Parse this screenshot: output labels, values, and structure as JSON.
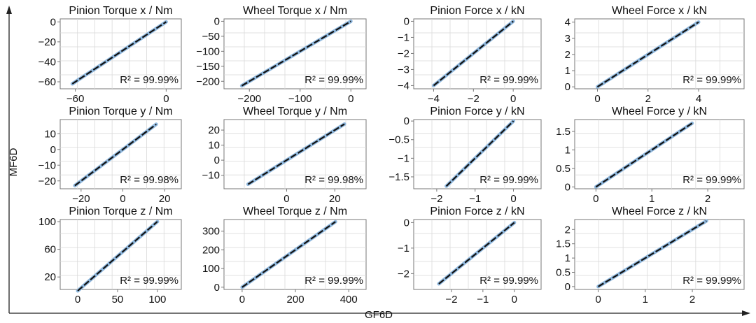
{
  "figure": {
    "ylabel": "MF6D",
    "xlabel": "GF6D",
    "colors": {
      "fit_line": "#111111",
      "points": "#8fb8de",
      "grid": "#d9d9d9",
      "frame": "#777777",
      "axis_arrow": "#222222"
    }
  },
  "chart_data": [
    {
      "type": "scatter",
      "title": "Pinion Torque x / Nm",
      "r2": "R² = 99.99%",
      "xlim": [
        -70,
        10
      ],
      "ylim": [
        -67,
        3
      ],
      "xticks": [
        -60,
        0
      ],
      "yticks": [
        0,
        -20,
        -40,
        -60
      ],
      "x": [
        -62,
        0
      ],
      "y": [
        -62,
        0
      ]
    },
    {
      "type": "scatter",
      "title": "Wheel Torque x / Nm",
      "r2": "R² = 99.99%",
      "xlim": [
        -250,
        30
      ],
      "ylim": [
        -225,
        8
      ],
      "xticks": [
        -200,
        -100,
        0
      ],
      "yticks": [
        0,
        -50,
        -100,
        -150,
        -200
      ],
      "x": [
        -215,
        0
      ],
      "y": [
        -215,
        0
      ]
    },
    {
      "type": "scatter",
      "title": "Pinion Force x / kN",
      "r2": "R² = 99.99%",
      "xlim": [
        -5,
        1.4
      ],
      "ylim": [
        -4.2,
        0.15
      ],
      "xticks": [
        -4,
        -2,
        0
      ],
      "yticks": [
        0,
        -1,
        -2,
        -3,
        -4
      ],
      "x": [
        -4,
        0
      ],
      "y": [
        -4,
        0
      ]
    },
    {
      "type": "scatter",
      "title": "Wheel Force x / kN",
      "r2": "R² = 99.99%",
      "xlim": [
        -0.9,
        5.8
      ],
      "ylim": [
        -0.12,
        4.2
      ],
      "xticks": [
        0,
        2,
        4
      ],
      "yticks": [
        0,
        1,
        2,
        3,
        4
      ],
      "x": [
        0,
        4
      ],
      "y": [
        0,
        4
      ]
    },
    {
      "type": "scatter",
      "title": "Pinion Torque y / Nm",
      "r2": "R² = 99.98%",
      "xlim": [
        -30,
        28
      ],
      "ylim": [
        -25,
        19
      ],
      "xticks": [
        -20,
        0,
        20
      ],
      "yticks": [
        10,
        0,
        -10,
        -20
      ],
      "x": [
        -23,
        16
      ],
      "y": [
        -23,
        16
      ]
    },
    {
      "type": "scatter",
      "title": "Wheel Torque y / Nm",
      "r2": "R² = 99.98%",
      "xlim": [
        -26,
        33
      ],
      "ylim": [
        -19,
        27
      ],
      "xticks": [
        0,
        20
      ],
      "yticks": [
        20,
        10,
        0,
        -10
      ],
      "x": [
        -16,
        24
      ],
      "y": [
        -16,
        24
      ]
    },
    {
      "type": "scatter",
      "title": "Pinion Force y / kN",
      "r2": "R² = 99.99%",
      "xlim": [
        -2.6,
        0.72
      ],
      "ylim": [
        -1.82,
        0.04
      ],
      "xticks": [
        -2,
        -1,
        0
      ],
      "yticks": [
        0,
        -0.5,
        -1,
        -1.5
      ],
      "x": [
        -1.75,
        0
      ],
      "y": [
        -1.75,
        0
      ]
    },
    {
      "type": "scatter",
      "title": "Wheel Force y / kN",
      "r2": "R² = 99.99%",
      "xlim": [
        -0.38,
        2.65
      ],
      "ylim": [
        -0.05,
        1.82
      ],
      "xticks": [
        0,
        1,
        2
      ],
      "yticks": [
        1.5,
        1,
        0.5,
        0
      ],
      "x": [
        0,
        1.72
      ],
      "y": [
        0,
        1.72
      ]
    },
    {
      "type": "scatter",
      "title": "Pinion Torque z / Nm",
      "r2": "R² = 99.99%",
      "xlim": [
        -22,
        130
      ],
      "ylim": [
        2,
        103
      ],
      "xticks": [
        0,
        50,
        100
      ],
      "yticks": [
        100,
        60,
        20
      ],
      "x": [
        0,
        100
      ],
      "y": [
        0,
        100
      ]
    },
    {
      "type": "scatter",
      "title": "Wheel Torque z / Nm",
      "r2": "R² = 99.99%",
      "xlim": [
        -68,
        465
      ],
      "ylim": [
        -12,
        362
      ],
      "xticks": [
        0,
        200,
        400
      ],
      "yticks": [
        300,
        200,
        100,
        0
      ],
      "x": [
        0,
        350
      ],
      "y": [
        0,
        350
      ]
    },
    {
      "type": "scatter",
      "title": "Pinion Force z / kN",
      "r2": "R² = 99.99%",
      "xlim": [
        -3.2,
        0.85
      ],
      "ylim": [
        -2.62,
        0.12
      ],
      "xticks": [
        -2,
        -1,
        0
      ],
      "yticks": [
        0,
        -1,
        -2
      ],
      "x": [
        -2.4,
        0
      ],
      "y": [
        -2.4,
        0
      ]
    },
    {
      "type": "scatter",
      "title": "Wheel Force z / kN",
      "r2": "R² = 99.99%",
      "xlim": [
        -0.5,
        3.1
      ],
      "ylim": [
        -0.1,
        2.35
      ],
      "xticks": [
        0,
        1,
        2
      ],
      "yticks": [
        2,
        1.5,
        1,
        0.5,
        0
      ],
      "x": [
        0,
        2.3
      ],
      "y": [
        0,
        2.3
      ]
    }
  ]
}
